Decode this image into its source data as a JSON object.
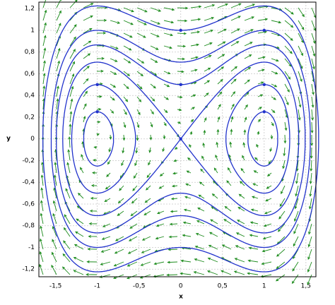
{
  "chart_data": {
    "type": "phase-portrait",
    "xlabel": "x",
    "ylabel": "y",
    "xlim": [
      -1.7,
      1.62
    ],
    "ylim": [
      -1.27,
      1.26
    ],
    "xticks": [
      {
        "value": -1.5,
        "label": "-1,5"
      },
      -1,
      {
        "value": -0.5,
        "label": "-0,5"
      },
      0,
      {
        "value": 0.5,
        "label": "0,5"
      },
      1,
      {
        "value": 1.5,
        "label": "1,5"
      }
    ],
    "yticks": [
      {
        "value": -1.2,
        "label": "-1,2"
      },
      -1,
      {
        "value": -0.8,
        "label": "-0,8"
      },
      {
        "value": -0.6,
        "label": "-0,6"
      },
      {
        "value": -0.4,
        "label": "-0,4"
      },
      {
        "value": -0.2,
        "label": "-0,2"
      },
      0,
      {
        "value": 0.2,
        "label": "0,2"
      },
      {
        "value": 0.4,
        "label": "0,4"
      },
      {
        "value": 0.6,
        "label": "0,6"
      },
      {
        "value": 0.8,
        "label": "0,8"
      },
      1,
      {
        "value": 1.2,
        "label": "1,2"
      }
    ],
    "grid": true,
    "points": [
      [
        0,
        1
      ],
      [
        0,
        0.5
      ],
      [
        0,
        0
      ],
      [
        1,
        1
      ],
      [
        1,
        0.5
      ],
      [
        1,
        0.25
      ],
      [
        -1,
        0.5
      ],
      [
        -1,
        0.25
      ]
    ],
    "curve_color": "#2233cc",
    "arrow_color": "#1a8a1a"
  }
}
